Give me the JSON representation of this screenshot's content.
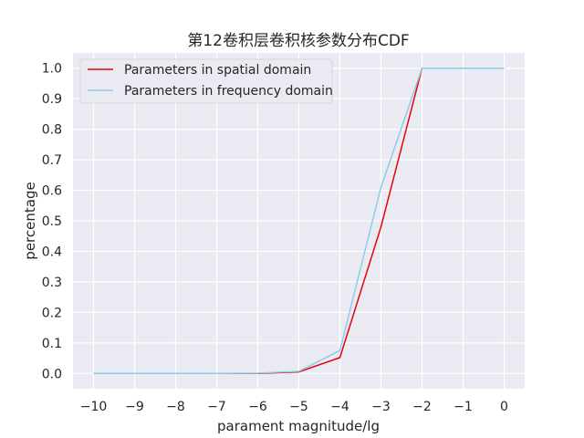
{
  "chart_data": {
    "type": "line",
    "title": "第12卷积层卷积核参数分布CDF",
    "xlabel": "parament magnitude/lg",
    "ylabel": "percentage",
    "x": [
      -10,
      -9,
      -8,
      -7,
      -6,
      -5,
      -4,
      -3,
      -2,
      -1,
      0
    ],
    "xticks": [
      "−10",
      "−9",
      "−8",
      "−7",
      "−6",
      "−5",
      "−4",
      "−3",
      "−2",
      "−1",
      "0"
    ],
    "yticks": [
      "0.0",
      "0.1",
      "0.2",
      "0.3",
      "0.4",
      "0.5",
      "0.6",
      "0.7",
      "0.8",
      "0.9",
      "1.0"
    ],
    "xlim": [
      -10.5,
      0.5
    ],
    "ylim": [
      -0.05,
      1.05
    ],
    "grid": true,
    "legend_position": "upper-left",
    "series": [
      {
        "name": "Parameters in spatial domain",
        "color": "#e8000b",
        "values": [
          0.0,
          0.0,
          0.0,
          0.0,
          0.0,
          0.005,
          0.052,
          0.48,
          1.0,
          1.0,
          1.0
        ]
      },
      {
        "name": "Parameters in frequency domain",
        "color": "#8fcbe8",
        "values": [
          0.0,
          0.0,
          0.0,
          0.0,
          0.001,
          0.007,
          0.075,
          0.61,
          1.0,
          1.0,
          1.0
        ]
      }
    ]
  }
}
